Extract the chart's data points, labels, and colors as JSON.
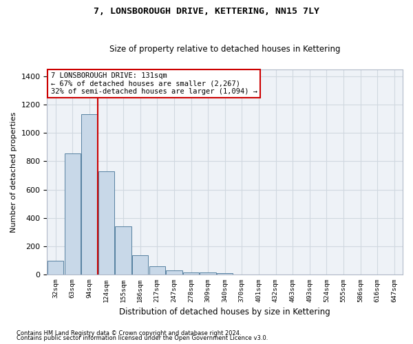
{
  "title": "7, LONSBOROUGH DRIVE, KETTERING, NN15 7LY",
  "subtitle": "Size of property relative to detached houses in Kettering",
  "xlabel": "Distribution of detached houses by size in Kettering",
  "ylabel": "Number of detached properties",
  "footnote1": "Contains HM Land Registry data © Crown copyright and database right 2024.",
  "footnote2": "Contains public sector information licensed under the Open Government Licence v3.0.",
  "annotation_line1": "7 LONSBOROUGH DRIVE: 131sqm",
  "annotation_line2": "← 67% of detached houses are smaller (2,267)",
  "annotation_line3": "32% of semi-detached houses are larger (1,094) →",
  "bar_color": "#c8d8e8",
  "bar_edge_color": "#5580a0",
  "grid_color": "#d0d8e0",
  "red_line_color": "#cc0000",
  "background_color": "#eef2f7",
  "categories": [
    "32sqm",
    "63sqm",
    "94sqm",
    "124sqm",
    "155sqm",
    "186sqm",
    "217sqm",
    "247sqm",
    "278sqm",
    "309sqm",
    "340sqm",
    "370sqm",
    "401sqm",
    "432sqm",
    "463sqm",
    "493sqm",
    "524sqm",
    "555sqm",
    "586sqm",
    "616sqm",
    "647sqm"
  ],
  "values": [
    100,
    855,
    1130,
    730,
    340,
    135,
    60,
    30,
    18,
    18,
    10,
    0,
    0,
    0,
    0,
    0,
    0,
    0,
    0,
    0,
    0
  ],
  "red_line_index": 2,
  "ylim": [
    0,
    1450
  ],
  "yticks": [
    0,
    200,
    400,
    600,
    800,
    1000,
    1200,
    1400
  ]
}
